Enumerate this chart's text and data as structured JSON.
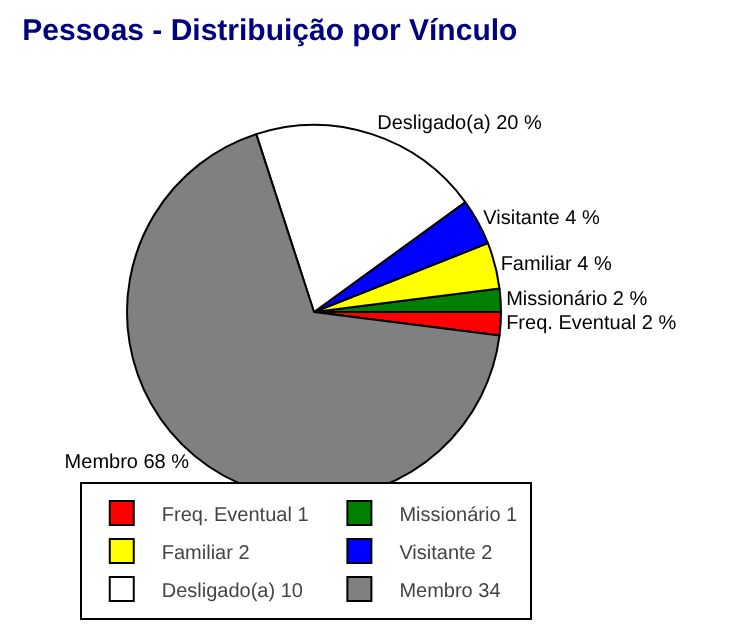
{
  "chart_data": {
    "type": "pie",
    "title": "Pessoas - Distribuição por Vínculo",
    "categories": [
      "Freq. Eventual 1",
      "Missionário 1",
      "Familiar 2",
      "Visitante 2",
      "Desligado(a) 10",
      "Membro 34"
    ],
    "values": [
      2,
      2,
      4,
      4,
      20,
      68
    ],
    "colors": [
      "#ff0000",
      "#008000",
      "#ffff00",
      "#0000ff",
      "#ffffff",
      "#808080"
    ],
    "value_labels": [
      "Freq. Eventual 2 %",
      "Missionário 2 %",
      "Familiar 4 %",
      "Visitante 4 %",
      "Desligado(a) 20 %",
      "Membro 68 %"
    ],
    "legend": "bottom"
  }
}
